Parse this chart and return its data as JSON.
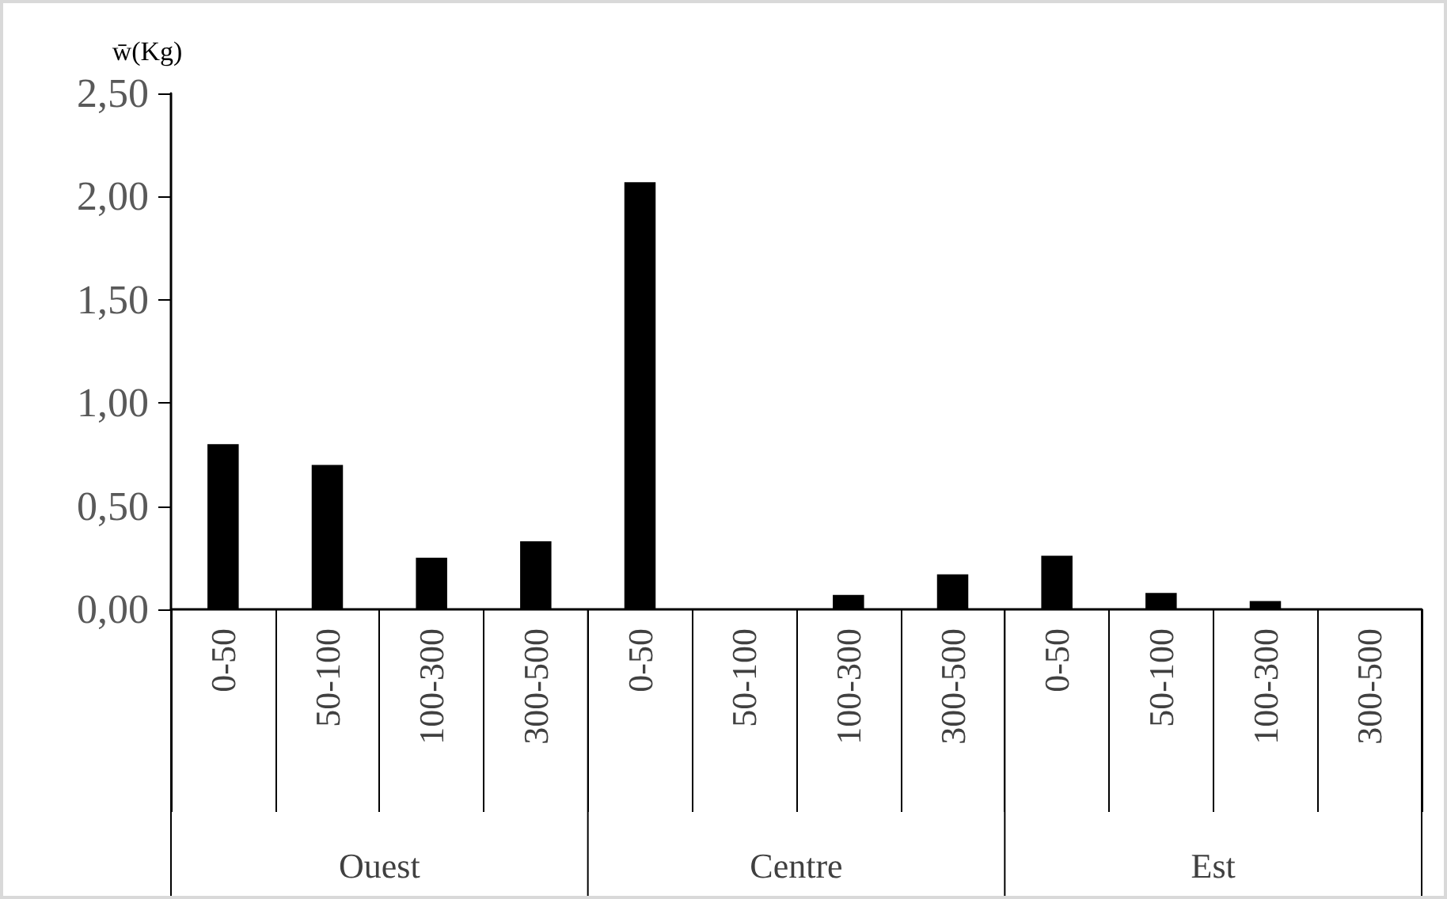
{
  "chart_data": {
    "type": "bar",
    "ylabel": "w̄(Kg)",
    "categories": [
      "0-50",
      "50-100",
      "100-300",
      "300-500",
      "0-50",
      "50-100",
      "100-300",
      "300-500",
      "0-50",
      "50-100",
      "100-300",
      "300-500"
    ],
    "series": [
      {
        "color": "#000000",
        "values": [
          0.8,
          0.7,
          0.25,
          0.33,
          2.07,
          0,
          0.07,
          0.17,
          0.26,
          0.08,
          0.04,
          0
        ]
      }
    ],
    "ylim": [
      0,
      2.5
    ],
    "yticks": [
      {
        "value": 0,
        "label": "0,00"
      },
      {
        "value": 0.5,
        "label": "0,50"
      },
      {
        "value": 1,
        "label": "1,00"
      },
      {
        "value": 1.5,
        "label": "1,50"
      },
      {
        "value": 2,
        "label": "2,00"
      },
      {
        "value": 2.5,
        "label": "2,50"
      }
    ],
    "annotations": [
      "Ouest",
      "Centre",
      "Est"
    ]
  }
}
